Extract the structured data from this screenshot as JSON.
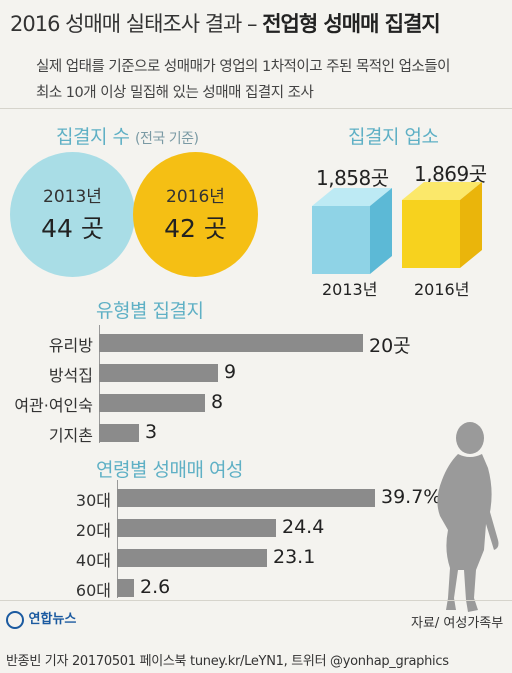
{
  "title": {
    "light": "2016 성매매 실태조사 결과 – ",
    "bold": "전업형 성매매 집결지"
  },
  "subtitle": {
    "line1": "실제 업태를 기준으로 성매매가 영업의 1차적이고 주된 목적인 업소들이",
    "line2": "최소 10개 이상 밀집해 있는 성매매 집결지 조사"
  },
  "count_section": {
    "label": "집결지 수",
    "sub": "(전국 기준)",
    "items": [
      {
        "year": "2013년",
        "value": "44 곳",
        "color": "#a9dde6"
      },
      {
        "year": "2016년",
        "value": "42 곳",
        "color": "#f5bf14"
      }
    ]
  },
  "business_section": {
    "label": "집결지 업소",
    "items": [
      {
        "year": "2013년",
        "count": "1,858곳",
        "color": "#8fd3e6"
      },
      {
        "year": "2016년",
        "count": "1,869곳",
        "color": "#f7d21e"
      }
    ]
  },
  "type_section": {
    "label": "유형별 집결지",
    "items": [
      {
        "label": "유리방",
        "value_text": "20곳",
        "value": 20
      },
      {
        "label": "방석집",
        "value_text": "9",
        "value": 9
      },
      {
        "label": "여관·여인숙",
        "value_text": "8",
        "value": 8
      },
      {
        "label": "기지촌",
        "value_text": "3",
        "value": 3
      }
    ]
  },
  "age_section": {
    "label": "연령별 성매매 여성",
    "items": [
      {
        "label": "30대",
        "value_text": "39.7%",
        "value": 39.7
      },
      {
        "label": "20대",
        "value_text": "24.4",
        "value": 24.4
      },
      {
        "label": "40대",
        "value_text": "23.1",
        "value": 23.1
      },
      {
        "label": "60대",
        "value_text": "2.6",
        "value": 2.6
      }
    ]
  },
  "logo": "연합뉴스",
  "source": "자료/ 여성가족부",
  "footer": "반종빈 기자 20170501 페이스북 tuney.kr/LeYN1, 트위터 @yonhap_graphics",
  "colors": {
    "accent": "#5fb0c5",
    "bar": "#8b8b8b",
    "background": "#f4f3ef"
  }
}
